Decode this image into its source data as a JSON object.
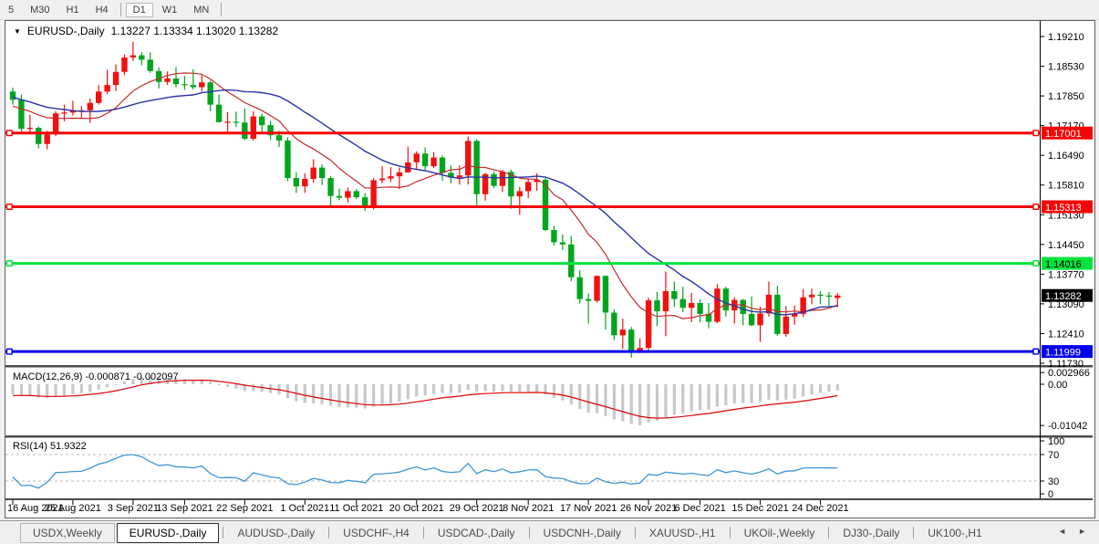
{
  "toolbar": {
    "items": [
      {
        "label": "5"
      },
      {
        "label": "M30"
      },
      {
        "label": "H1"
      },
      {
        "label": "H4"
      },
      {
        "label": "D1",
        "active": true
      },
      {
        "label": "W1"
      },
      {
        "label": "MN"
      }
    ]
  },
  "chart": {
    "title": {
      "dropdown_icon": "▼",
      "symbol": "EURUSD-,Daily",
      "ohlc": "1.13227 1.13334 1.13020 1.13282"
    },
    "price_axis_ticks": [
      "1.19210",
      "1.18530",
      "1.17850",
      "1.17170",
      "1.16490",
      "1.15810",
      "1.15130",
      "1.14450",
      "1.13770",
      "1.13090",
      "1.12410",
      "1.11730"
    ],
    "levels": [
      {
        "price": "1.17001",
        "color": "#F50505",
        "text_color": "#ffffff"
      },
      {
        "price": "1.15313",
        "color": "#F50505",
        "text_color": "#ffffff"
      },
      {
        "price": "1.14016",
        "color": "#00E33C",
        "text_color": "#000000"
      },
      {
        "price": "1.11999",
        "color": "#0000EE",
        "text_color": "#ffffff"
      }
    ],
    "current_price_badge": {
      "price": "1.13282",
      "bg": "#000000",
      "text_color": "#ffffff"
    }
  },
  "chart_data": {
    "type": "candlestick",
    "symbol": "EURUSD-",
    "timeframe": "Daily",
    "title": "EURUSD-,Daily",
    "ohlc_current": {
      "open": 1.13227,
      "high": 1.13334,
      "low": 1.1302,
      "close": 1.13282
    },
    "up_color": "#F21010",
    "down_color": "#00A51E",
    "ma_fast": {
      "period": 10,
      "color": "#C62A2A"
    },
    "ma_slow": {
      "period": 21,
      "color": "#2A35A5"
    },
    "ylim": [
      1.1173,
      1.1921
    ],
    "dates": [
      {
        "label": "16 Aug 2021",
        "bar": 0
      },
      {
        "label": "25 Aug 2021",
        "bar": 7
      },
      {
        "label": "3 Sep 2021",
        "bar": 14
      },
      {
        "label": "13 Sep 2021",
        "bar": 20
      },
      {
        "label": "22 Sep 2021",
        "bar": 27
      },
      {
        "label": "1 Oct 2021",
        "bar": 34
      },
      {
        "label": "11 Oct 2021",
        "bar": 40
      },
      {
        "label": "20 Oct 2021",
        "bar": 47
      },
      {
        "label": "29 Oct 2021",
        "bar": 54
      },
      {
        "label": "8 Nov 2021",
        "bar": 60
      },
      {
        "label": "17 Nov 2021",
        "bar": 67
      },
      {
        "label": "26 Nov 2021",
        "bar": 74
      },
      {
        "label": "6 Dec 2021",
        "bar": 80
      },
      {
        "label": "15 Dec 2021",
        "bar": 87
      },
      {
        "label": "24 Dec 2021",
        "bar": 94
      }
    ],
    "candles": [
      [
        1.1795,
        1.1804,
        1.1765,
        1.1776
      ],
      [
        1.1776,
        1.1788,
        1.1702,
        1.171
      ],
      [
        1.171,
        1.1742,
        1.17,
        1.1712
      ],
      [
        1.1712,
        1.1715,
        1.1665,
        1.1675
      ],
      [
        1.1675,
        1.1705,
        1.1663,
        1.1697
      ],
      [
        1.1697,
        1.175,
        1.1693,
        1.1745
      ],
      [
        1.1745,
        1.1765,
        1.1727,
        1.1747
      ],
      [
        1.1747,
        1.1774,
        1.174,
        1.1751
      ],
      [
        1.1751,
        1.1762,
        1.1735,
        1.1752
      ],
      [
        1.1752,
        1.1779,
        1.1723,
        1.1769
      ],
      [
        1.1769,
        1.181,
        1.1765,
        1.1795
      ],
      [
        1.1795,
        1.1845,
        1.1789,
        1.181
      ],
      [
        1.181,
        1.1857,
        1.1796,
        1.184
      ],
      [
        1.184,
        1.188,
        1.1833,
        1.1873
      ],
      [
        1.1873,
        1.1909,
        1.1865,
        1.1878
      ],
      [
        1.1878,
        1.1885,
        1.1855,
        1.1868
      ],
      [
        1.1868,
        1.1885,
        1.1838,
        1.1842
      ],
      [
        1.1842,
        1.185,
        1.1802,
        1.1817
      ],
      [
        1.1817,
        1.1841,
        1.181,
        1.1825
      ],
      [
        1.1825,
        1.1851,
        1.1805,
        1.1812
      ],
      [
        1.1812,
        1.1831,
        1.1799,
        1.181
      ],
      [
        1.181,
        1.1846,
        1.18,
        1.1805
      ],
      [
        1.1805,
        1.1832,
        1.1795,
        1.1816
      ],
      [
        1.1816,
        1.182,
        1.175,
        1.1765
      ],
      [
        1.1765,
        1.1788,
        1.1724,
        1.1725
      ],
      [
        1.1725,
        1.1748,
        1.17,
        1.1726
      ],
      [
        1.1726,
        1.1749,
        1.1714,
        1.1724
      ],
      [
        1.1724,
        1.1756,
        1.1684,
        1.1687
      ],
      [
        1.1687,
        1.175,
        1.1683,
        1.1738
      ],
      [
        1.1738,
        1.1745,
        1.1701,
        1.1718
      ],
      [
        1.1718,
        1.1728,
        1.1685,
        1.1695
      ],
      [
        1.1695,
        1.1705,
        1.1668,
        1.1683
      ],
      [
        1.1683,
        1.169,
        1.159,
        1.1597
      ],
      [
        1.1597,
        1.161,
        1.1563,
        1.1578
      ],
      [
        1.1578,
        1.1608,
        1.1563,
        1.1595
      ],
      [
        1.1595,
        1.164,
        1.1586,
        1.1621
      ],
      [
        1.1621,
        1.1628,
        1.1581,
        1.1597
      ],
      [
        1.1597,
        1.1602,
        1.1529,
        1.1556
      ],
      [
        1.1556,
        1.1573,
        1.1546,
        1.1552
      ],
      [
        1.1552,
        1.1575,
        1.1541,
        1.1567
      ],
      [
        1.1567,
        1.1572,
        1.1549,
        1.1553
      ],
      [
        1.1553,
        1.1562,
        1.1522,
        1.153
      ],
      [
        1.153,
        1.1597,
        1.1525,
        1.1592
      ],
      [
        1.1592,
        1.1624,
        1.1585,
        1.1596
      ],
      [
        1.1596,
        1.1622,
        1.1588,
        1.1601
      ],
      [
        1.1601,
        1.1621,
        1.1572,
        1.161
      ],
      [
        1.161,
        1.1669,
        1.1609,
        1.1633
      ],
      [
        1.1633,
        1.1658,
        1.1617,
        1.1653
      ],
      [
        1.1653,
        1.1667,
        1.1616,
        1.1624
      ],
      [
        1.1624,
        1.1656,
        1.162,
        1.1644
      ],
      [
        1.1644,
        1.1649,
        1.1591,
        1.1609
      ],
      [
        1.1609,
        1.1626,
        1.1585,
        1.1598
      ],
      [
        1.1598,
        1.1626,
        1.1582,
        1.1603
      ],
      [
        1.1603,
        1.1692,
        1.1582,
        1.1682
      ],
      [
        1.1682,
        1.1686,
        1.1535,
        1.156
      ],
      [
        1.156,
        1.1609,
        1.1545,
        1.1606
      ],
      [
        1.1606,
        1.1612,
        1.1574,
        1.1579
      ],
      [
        1.1579,
        1.1616,
        1.1565,
        1.1611
      ],
      [
        1.1611,
        1.1616,
        1.1527,
        1.1555
      ],
      [
        1.1555,
        1.1577,
        1.1513,
        1.1567
      ],
      [
        1.1567,
        1.1596,
        1.1551,
        1.1588
      ],
      [
        1.1588,
        1.1608,
        1.1568,
        1.1593
      ],
      [
        1.1593,
        1.1598,
        1.1475,
        1.1478
      ],
      [
        1.1478,
        1.1488,
        1.1443,
        1.145
      ],
      [
        1.145,
        1.1468,
        1.1432,
        1.1445
      ],
      [
        1.1445,
        1.1464,
        1.1361,
        1.137
      ],
      [
        1.137,
        1.1386,
        1.131,
        1.132
      ],
      [
        1.132,
        1.1333,
        1.1264,
        1.1316
      ],
      [
        1.1316,
        1.1374,
        1.1312,
        1.1373
      ],
      [
        1.1373,
        1.1374,
        1.125,
        1.1289
      ],
      [
        1.1289,
        1.1296,
        1.1226,
        1.1237
      ],
      [
        1.1237,
        1.1275,
        1.1206,
        1.125
      ],
      [
        1.125,
        1.1256,
        1.1186,
        1.12
      ],
      [
        1.12,
        1.123,
        1.1196,
        1.1208
      ],
      [
        1.1208,
        1.1323,
        1.1203,
        1.1317
      ],
      [
        1.1317,
        1.1336,
        1.1258,
        1.1292
      ],
      [
        1.1292,
        1.1383,
        1.1235,
        1.1338
      ],
      [
        1.1338,
        1.136,
        1.1302,
        1.132
      ],
      [
        1.132,
        1.1348,
        1.129,
        1.13
      ],
      [
        1.13,
        1.1334,
        1.1267,
        1.1311
      ],
      [
        1.1311,
        1.132,
        1.1267,
        1.1286
      ],
      [
        1.1286,
        1.1311,
        1.1253,
        1.1268
      ],
      [
        1.1268,
        1.1354,
        1.1265,
        1.1344
      ],
      [
        1.1344,
        1.1348,
        1.128,
        1.1294
      ],
      [
        1.1294,
        1.1324,
        1.1264,
        1.1318
      ],
      [
        1.1318,
        1.132,
        1.126,
        1.1286
      ],
      [
        1.1286,
        1.1326,
        1.1258,
        1.126
      ],
      [
        1.126,
        1.1303,
        1.1222,
        1.1287
      ],
      [
        1.1287,
        1.136,
        1.128,
        1.133
      ],
      [
        1.133,
        1.135,
        1.1236,
        1.124
      ],
      [
        1.124,
        1.1304,
        1.1234,
        1.128
      ],
      [
        1.128,
        1.1305,
        1.1261,
        1.1286
      ],
      [
        1.1286,
        1.1343,
        1.1279,
        1.1324
      ],
      [
        1.1324,
        1.1344,
        1.1308,
        1.133
      ],
      [
        1.133,
        1.1338,
        1.1308,
        1.1328
      ],
      [
        1.1328,
        1.1336,
        1.1304,
        1.1327
      ],
      [
        1.13227,
        1.13334,
        1.1302,
        1.13282
      ]
    ]
  },
  "indicators": {
    "macd": {
      "label": "MACD(12,26,9)",
      "values_text": "-0.000871 -0.002097",
      "params": [
        12,
        26,
        9
      ],
      "axis_ticks": [
        "0.002966",
        "0.00",
        "-0.01042"
      ],
      "histogram_color": "#C8C8C8",
      "signal_color": "#DE0202"
    },
    "rsi": {
      "label": "RSI(14)",
      "value_text": "51.9322",
      "period": 14,
      "axis_ticks": [
        "100",
        "70",
        "30",
        "0"
      ],
      "guide_levels": [
        70,
        30
      ],
      "line_color": "#3C96D7"
    }
  },
  "tab_bar": {
    "scroll_left_icon": "◄",
    "scroll_right_icon": "►",
    "tabs": [
      {
        "label": "USDX,Weekly"
      },
      {
        "label": "EURUSD-,Daily",
        "active": true
      },
      {
        "label": "AUDUSD-,Daily"
      },
      {
        "label": "USDCHF-,H4"
      },
      {
        "label": "USDCAD-,Daily"
      },
      {
        "label": "USDCNH-,Daily"
      },
      {
        "label": "XAUUSD-,H1"
      },
      {
        "label": "UKOil-,Weekly"
      },
      {
        "label": "DJ30-,Daily"
      },
      {
        "label": "UK100-,H1"
      }
    ]
  }
}
